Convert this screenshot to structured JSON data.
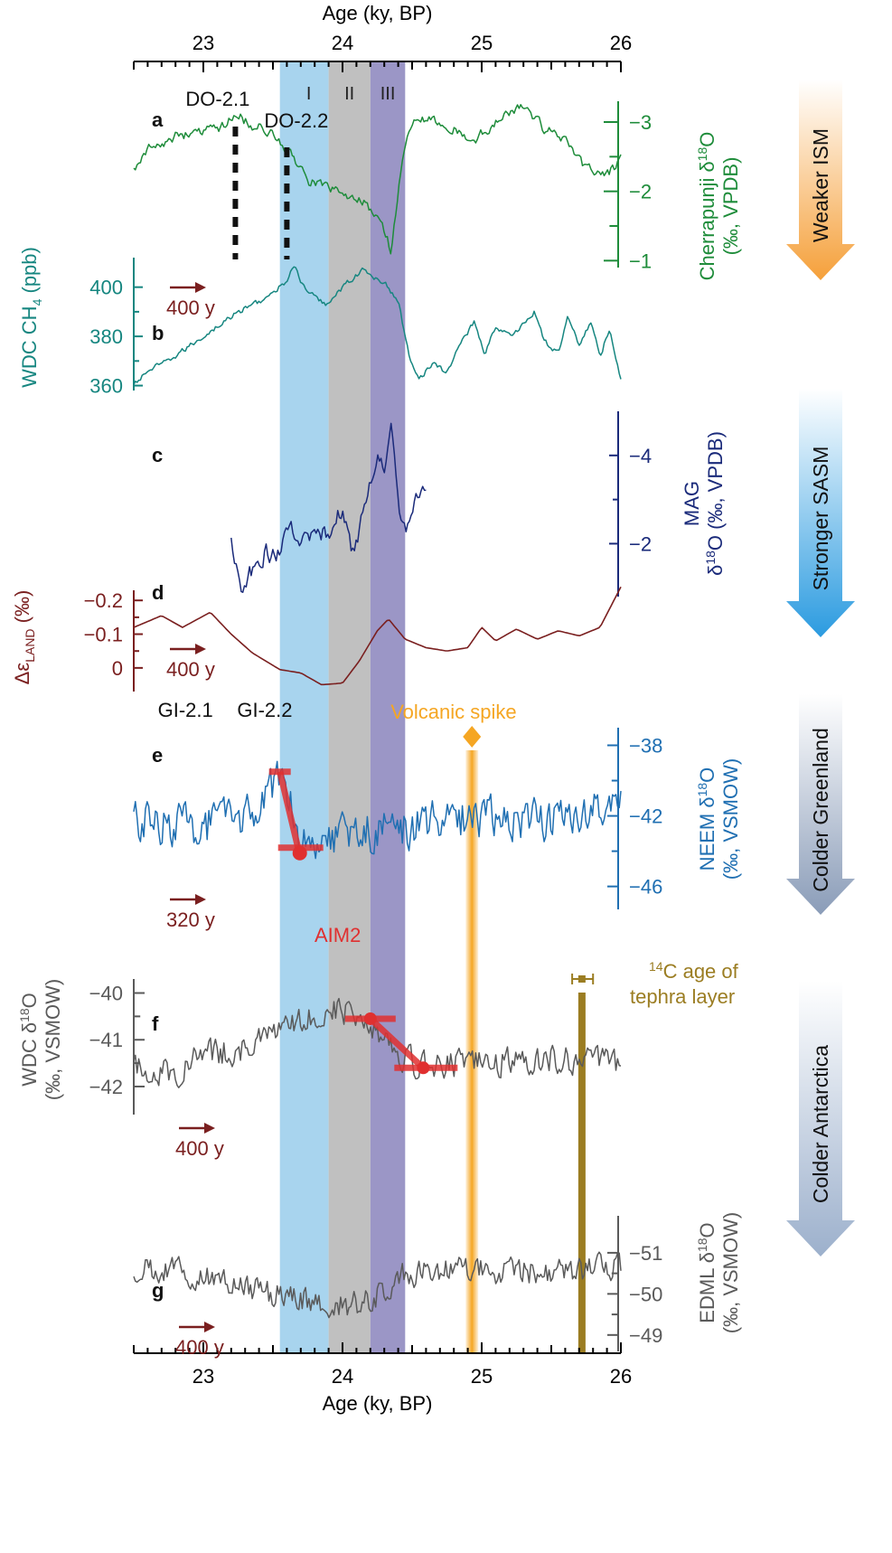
{
  "chart_data": {
    "type": "line",
    "x_axis": {
      "label": "Age (ky, BP)",
      "range": [
        22.5,
        26.0
      ],
      "ticks": [
        "23",
        "24",
        "25",
        "26"
      ],
      "minor_step": 0.1
    },
    "shaded_intervals": [
      {
        "label": "I",
        "from": 23.55,
        "to": 23.9,
        "color": "#a8d4ee"
      },
      {
        "label": "II",
        "from": 23.9,
        "to": 24.2,
        "color": "#c0c0c0"
      },
      {
        "label": "III",
        "from": 24.2,
        "to": 24.45,
        "color": "#9b96c6"
      }
    ],
    "volcanic_spike": {
      "label": "Volcanic spike",
      "age": 24.93,
      "color": "#f5a623"
    },
    "tephra": {
      "label_superscript": "14",
      "label_line1": "C age of",
      "label_line2": "tephra layer",
      "age": 25.72,
      "error": [
        25.65,
        25.8
      ],
      "color": "#9b7d22"
    },
    "panels": [
      {
        "id": "a",
        "letter": "a",
        "color": "#1e8c3a",
        "axis_title": "Cherrapunji δ",
        "axis_sup": "18",
        "axis_title_end": "O",
        "axis_units": "(‰, VPDB)",
        "range": [
          -3.3,
          -0.9
        ],
        "inverted": true,
        "ticks": [
          {
            "v": -3,
            "l": "−3"
          },
          {
            "v": -2,
            "l": "−2"
          },
          {
            "v": -1,
            "l": "−1"
          }
        ],
        "anchors": [
          [
            22.5,
            -2.35
          ],
          [
            22.6,
            -2.6
          ],
          [
            22.8,
            -2.8
          ],
          [
            23.0,
            -2.85
          ],
          [
            23.15,
            -2.95
          ],
          [
            23.25,
            -3.1
          ],
          [
            23.35,
            -2.95
          ],
          [
            23.5,
            -2.85
          ],
          [
            23.62,
            -2.55
          ],
          [
            23.75,
            -2.15
          ],
          [
            23.9,
            -2.05
          ],
          [
            24.05,
            -1.9
          ],
          [
            24.15,
            -1.85
          ],
          [
            24.22,
            -1.65
          ],
          [
            24.3,
            -1.45
          ],
          [
            24.35,
            -1.15
          ],
          [
            24.42,
            -2.3
          ],
          [
            24.5,
            -3.0
          ],
          [
            24.65,
            -3.05
          ],
          [
            24.8,
            -2.9
          ],
          [
            24.95,
            -2.75
          ],
          [
            25.05,
            -2.9
          ],
          [
            25.15,
            -3.1
          ],
          [
            25.3,
            -3.25
          ],
          [
            25.45,
            -2.9
          ],
          [
            25.6,
            -2.75
          ],
          [
            25.75,
            -2.35
          ],
          [
            25.9,
            -2.25
          ],
          [
            26.0,
            -2.45
          ]
        ],
        "noise": 0.1,
        "events": [
          {
            "label": "DO-2.1",
            "age": 23.23
          },
          {
            "label": "DO-2.2",
            "age": 23.6
          }
        ]
      },
      {
        "id": "b",
        "letter": "b",
        "color": "#168680",
        "axis_title": "WDC CH",
        "axis_sub": "4",
        "axis_units": "(ppb)",
        "range": [
          358,
          412
        ],
        "inverted": false,
        "ticks": [
          {
            "v": 360,
            "l": "360"
          },
          {
            "v": 380,
            "l": "380"
          },
          {
            "v": 400,
            "l": "400"
          }
        ],
        "anchors": [
          [
            22.5,
            360
          ],
          [
            22.6,
            366
          ],
          [
            22.75,
            370
          ],
          [
            22.9,
            376
          ],
          [
            23.05,
            382
          ],
          [
            23.2,
            388
          ],
          [
            23.35,
            393
          ],
          [
            23.5,
            397
          ],
          [
            23.6,
            403
          ],
          [
            23.65,
            409
          ],
          [
            23.72,
            400
          ],
          [
            23.8,
            396
          ],
          [
            23.88,
            393
          ],
          [
            24.0,
            400
          ],
          [
            24.08,
            404
          ],
          [
            24.15,
            407
          ],
          [
            24.22,
            404
          ],
          [
            24.3,
            402
          ],
          [
            24.4,
            394
          ],
          [
            24.48,
            372
          ],
          [
            24.55,
            363
          ],
          [
            24.65,
            369
          ],
          [
            24.75,
            365
          ],
          [
            24.85,
            378
          ],
          [
            24.95,
            386
          ],
          [
            25.02,
            373
          ],
          [
            25.1,
            384
          ],
          [
            25.2,
            380
          ],
          [
            25.3,
            385
          ],
          [
            25.38,
            390
          ],
          [
            25.45,
            378
          ],
          [
            25.55,
            373
          ],
          [
            25.62,
            389
          ],
          [
            25.7,
            376
          ],
          [
            25.78,
            386
          ],
          [
            25.85,
            372
          ],
          [
            25.92,
            383
          ],
          [
            26.0,
            363
          ]
        ],
        "noise": 1.5,
        "lag": "400 y"
      },
      {
        "id": "c",
        "letter": "c",
        "color": "#1a2a7a",
        "axis_title": "MAG",
        "axis_title2": "δ",
        "axis_sup": "18",
        "axis_title_end": "O",
        "axis_units": "(‰, VPDB)",
        "range": [
          -5.0,
          -0.8
        ],
        "inverted": true,
        "ticks": [
          {
            "v": -2,
            "l": "−2"
          },
          {
            "v": -4,
            "l": "−4"
          }
        ],
        "anchors": [
          [
            23.2,
            -2.2
          ],
          [
            23.27,
            -1.0
          ],
          [
            23.35,
            -1.4
          ],
          [
            23.45,
            -1.8
          ],
          [
            23.55,
            -1.7
          ],
          [
            23.62,
            -2.4
          ],
          [
            23.7,
            -2.0
          ],
          [
            23.8,
            -2.1
          ],
          [
            23.9,
            -2.3
          ],
          [
            24.0,
            -2.8
          ],
          [
            24.08,
            -1.7
          ],
          [
            24.13,
            -2.4
          ],
          [
            24.2,
            -3.4
          ],
          [
            24.25,
            -4.0
          ],
          [
            24.3,
            -3.7
          ],
          [
            24.35,
            -4.6
          ],
          [
            24.4,
            -2.8
          ],
          [
            24.45,
            -2.2
          ],
          [
            24.5,
            -2.9
          ],
          [
            24.6,
            -3.3
          ]
        ],
        "noise": 0.28
      },
      {
        "id": "d",
        "letter": "d",
        "color": "#7a1f1f",
        "axis_title": "Δε",
        "axis_sub": "LAND",
        "axis_units": "(‰)",
        "range": [
          0.07,
          -0.23
        ],
        "inverted": false,
        "ticks": [
          {
            "v": -0.2,
            "l": "−0.2"
          },
          {
            "v": -0.1,
            "l": "−0.1"
          },
          {
            "v": 0,
            "l": "0"
          }
        ],
        "anchors": [
          [
            22.5,
            -0.12
          ],
          [
            22.7,
            -0.155
          ],
          [
            22.85,
            -0.12
          ],
          [
            23.05,
            -0.165
          ],
          [
            23.2,
            -0.1
          ],
          [
            23.35,
            -0.045
          ],
          [
            23.55,
            0.005
          ],
          [
            23.7,
            0.015
          ],
          [
            23.85,
            0.05
          ],
          [
            24.0,
            0.045
          ],
          [
            24.12,
            -0.02
          ],
          [
            24.25,
            -0.11
          ],
          [
            24.33,
            -0.145
          ],
          [
            24.45,
            -0.085
          ],
          [
            24.6,
            -0.06
          ],
          [
            24.75,
            -0.05
          ],
          [
            24.9,
            -0.06
          ],
          [
            25.0,
            -0.12
          ],
          [
            25.1,
            -0.08
          ],
          [
            25.25,
            -0.115
          ],
          [
            25.4,
            -0.085
          ],
          [
            25.55,
            -0.11
          ],
          [
            25.7,
            -0.095
          ],
          [
            25.85,
            -0.12
          ],
          [
            26.0,
            -0.24
          ]
        ],
        "noise": 0,
        "lag": "400 y"
      },
      {
        "id": "e",
        "letter": "e",
        "color": "#1f6fb2",
        "axis_title": "NEEM δ",
        "axis_sup": "18",
        "axis_title_end": "O",
        "axis_units": "(‰, VSMOW)",
        "range": [
          -47.3,
          -37.0
        ],
        "inverted": false,
        "ticks": [
          {
            "v": -38,
            "l": "−38"
          },
          {
            "v": -42,
            "l": "−42"
          },
          {
            "v": -46,
            "l": "−46"
          }
        ],
        "anchors": [
          [
            22.5,
            -42.3
          ],
          [
            23.0,
            -42.6
          ],
          [
            23.4,
            -41.8
          ],
          [
            23.55,
            -39.8
          ],
          [
            23.62,
            -40.5
          ],
          [
            23.7,
            -43.2
          ],
          [
            24.0,
            -43.0
          ],
          [
            24.5,
            -42.6
          ],
          [
            25.0,
            -42.0
          ],
          [
            25.5,
            -42.2
          ],
          [
            26.0,
            -41.6
          ]
        ],
        "noise": 1.7,
        "events": [
          {
            "label": "GI-2.1",
            "age": 22.9
          },
          {
            "label": "GI-2.2",
            "age": 23.47
          }
        ],
        "transition": [
          [
            23.55,
            -39.5
          ],
          [
            23.68,
            -43.8
          ]
        ],
        "lag": "320 y"
      },
      {
        "id": "f",
        "letter": "f",
        "color": "#5a5a5a",
        "axis_title": "WDC δ",
        "axis_sup": "18",
        "axis_title_end": "O",
        "axis_units": "(‰, VSMOW)",
        "range": [
          -42.6,
          -39.7
        ],
        "inverted": false,
        "ticks": [
          {
            "v": -40,
            "l": "−40"
          },
          {
            "v": -41,
            "l": "−41"
          },
          {
            "v": -42,
            "l": "−42"
          }
        ],
        "anchors": [
          [
            22.5,
            -41.6
          ],
          [
            22.8,
            -41.7
          ],
          [
            23.0,
            -41.3
          ],
          [
            23.3,
            -41.2
          ],
          [
            23.5,
            -40.9
          ],
          [
            23.7,
            -40.6
          ],
          [
            23.9,
            -40.3
          ],
          [
            24.05,
            -40.4
          ],
          [
            24.2,
            -40.6
          ],
          [
            24.35,
            -41.1
          ],
          [
            24.5,
            -41.5
          ],
          [
            24.7,
            -41.5
          ],
          [
            25.0,
            -41.5
          ],
          [
            25.5,
            -41.4
          ],
          [
            26.0,
            -41.5
          ]
        ],
        "noise": 0.42,
        "lag": "400 y",
        "annotation": "AIM2",
        "transition": [
          [
            24.2,
            -40.55
          ],
          [
            24.58,
            -41.6
          ]
        ]
      },
      {
        "id": "g",
        "letter": "g",
        "color": "#5a5a5a",
        "axis_title": "EDML δ",
        "axis_sup": "18",
        "axis_title_end": "O",
        "axis_units": "(‰, VSMOW)",
        "range": [
          -51.9,
          -48.6
        ],
        "inverted": true,
        "ticks": [
          {
            "v": -49,
            "l": "−49"
          },
          {
            "v": -50,
            "l": "−50"
          },
          {
            "v": -51,
            "l": "−51"
          }
        ],
        "anchors": [
          [
            22.5,
            -50.6
          ],
          [
            22.8,
            -50.6
          ],
          [
            23.0,
            -50.4
          ],
          [
            23.3,
            -50.1
          ],
          [
            23.5,
            -50.0
          ],
          [
            23.7,
            -49.9
          ],
          [
            23.9,
            -49.7
          ],
          [
            24.05,
            -49.7
          ],
          [
            24.2,
            -49.9
          ],
          [
            24.4,
            -50.4
          ],
          [
            24.6,
            -50.6
          ],
          [
            25.0,
            -50.6
          ],
          [
            25.5,
            -50.5
          ],
          [
            26.0,
            -50.7
          ]
        ],
        "noise": 0.45,
        "lag": "400 y"
      }
    ],
    "side_arrows": [
      {
        "label": "Weaker ISM",
        "from": "#ffffff",
        "to": "#f5a03a"
      },
      {
        "label": "Stronger SASM",
        "from": "#ffffff",
        "to": "#2b9be0"
      },
      {
        "label": "Colder Greenland",
        "from": "#ffffff",
        "to": "#8a9cb8"
      },
      {
        "label": "Colder Antarctica",
        "from": "#ffffff",
        "to": "#9cb0cc"
      }
    ]
  }
}
